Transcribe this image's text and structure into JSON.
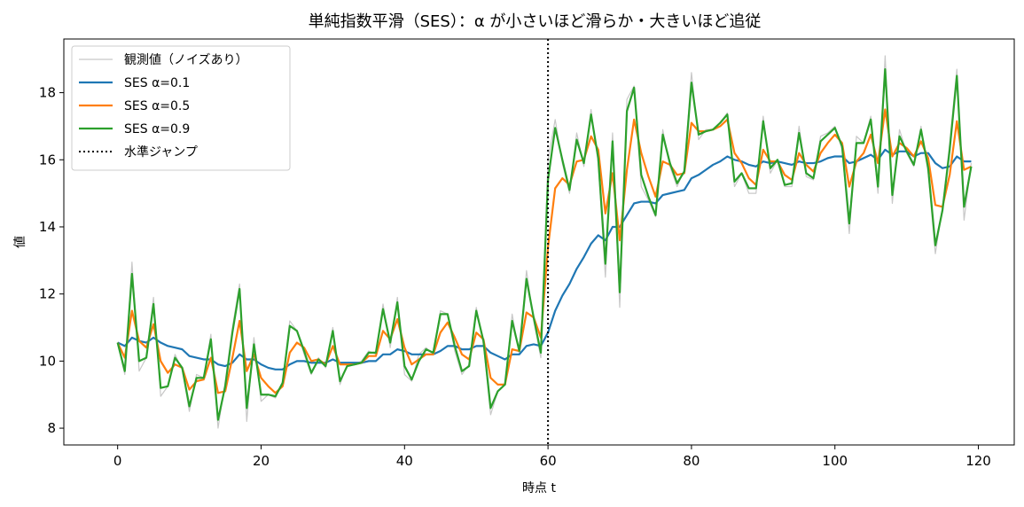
{
  "chart_data": {
    "type": "line",
    "title": "単純指数平滑（SES）：α が小さいほど滑らか・大きいほど追従",
    "xlabel": "時点 t",
    "ylabel": "値",
    "xlim": [
      -7.5,
      125
    ],
    "ylim": [
      7.5,
      19.6
    ],
    "xticks": [
      0,
      20,
      40,
      60,
      80,
      100,
      120
    ],
    "yticks": [
      8,
      10,
      12,
      14,
      16,
      18
    ],
    "grid": false,
    "legend": "top-left",
    "x": [
      0,
      1,
      2,
      3,
      4,
      5,
      6,
      7,
      8,
      9,
      10,
      11,
      12,
      13,
      14,
      15,
      16,
      17,
      18,
      19,
      20,
      21,
      22,
      23,
      24,
      25,
      26,
      27,
      28,
      29,
      30,
      31,
      32,
      33,
      34,
      35,
      36,
      37,
      38,
      39,
      40,
      41,
      42,
      43,
      44,
      45,
      46,
      47,
      48,
      49,
      50,
      51,
      52,
      53,
      54,
      55,
      56,
      57,
      58,
      59,
      60,
      61,
      62,
      63,
      64,
      65,
      66,
      67,
      68,
      69,
      70,
      71,
      72,
      73,
      74,
      75,
      76,
      77,
      78,
      79,
      80,
      81,
      82,
      83,
      84,
      85,
      86,
      87,
      88,
      89,
      90,
      91,
      92,
      93,
      94,
      95,
      96,
      97,
      98,
      99,
      100,
      101,
      102,
      103,
      104,
      105,
      106,
      107,
      108,
      109,
      110,
      111,
      112,
      113,
      114,
      115,
      116,
      117,
      118,
      119
    ],
    "series": [
      {
        "name": "観測値（ノイズあり）",
        "color": "#c8c8c8",
        "values": [
          10.55,
          9.6,
          12.95,
          9.7,
          10.1,
          11.9,
          8.95,
          9.25,
          10.2,
          9.75,
          8.5,
          9.6,
          9.5,
          10.8,
          8.0,
          9.4,
          11.0,
          12.3,
          8.2,
          10.7,
          8.8,
          9.0,
          8.9,
          9.4,
          11.2,
          10.9,
          10.2,
          9.6,
          10.1,
          9.8,
          11.0,
          9.3,
          9.9,
          9.9,
          10.0,
          10.3,
          10.2,
          11.7,
          10.4,
          11.9,
          9.6,
          9.4,
          10.2,
          10.4,
          10.2,
          11.5,
          11.4,
          10.3,
          9.6,
          9.9,
          11.6,
          10.5,
          8.4,
          9.1,
          9.3,
          11.4,
          10.2,
          12.7,
          11.2,
          10.1,
          16.0,
          17.2,
          15.9,
          15.0,
          16.8,
          15.8,
          17.5,
          15.9,
          12.5,
          16.8,
          11.6,
          17.8,
          18.2,
          15.2,
          14.8,
          14.3,
          16.9,
          15.8,
          15.2,
          15.7,
          18.6,
          16.6,
          16.9,
          16.9,
          17.1,
          17.4,
          15.2,
          15.6,
          15.0,
          15.0,
          17.3,
          15.6,
          16.0,
          15.2,
          15.2,
          17.0,
          15.5,
          15.4,
          16.7,
          16.8,
          17.0,
          16.3,
          13.8,
          16.7,
          16.5,
          17.3,
          15.0,
          19.1,
          14.7,
          16.9,
          16.2,
          15.8,
          17.0,
          15.6,
          13.2,
          14.6,
          16.5,
          18.7,
          14.2,
          15.9
        ]
      },
      {
        "name": "SES α=0.1",
        "color": "#1f77b4",
        "values": [
          10.55,
          10.45,
          10.7,
          10.6,
          10.55,
          10.7,
          10.55,
          10.45,
          10.4,
          10.35,
          10.15,
          10.1,
          10.05,
          10.05,
          9.9,
          9.85,
          9.95,
          10.2,
          10.05,
          10.05,
          9.9,
          9.8,
          9.75,
          9.75,
          9.9,
          10.0,
          10.0,
          9.95,
          9.95,
          9.95,
          10.05,
          9.95,
          9.95,
          9.95,
          9.95,
          10.0,
          10.0,
          10.2,
          10.2,
          10.35,
          10.3,
          10.2,
          10.2,
          10.2,
          10.2,
          10.3,
          10.45,
          10.45,
          10.35,
          10.35,
          10.45,
          10.45,
          10.25,
          10.15,
          10.05,
          10.2,
          10.2,
          10.45,
          10.5,
          10.45,
          10.85,
          11.5,
          11.95,
          12.3,
          12.75,
          13.1,
          13.5,
          13.75,
          13.6,
          14.0,
          14.0,
          14.35,
          14.7,
          14.75,
          14.75,
          14.7,
          14.95,
          15.0,
          15.05,
          15.1,
          15.45,
          15.55,
          15.7,
          15.85,
          15.95,
          16.1,
          16.0,
          15.95,
          15.85,
          15.8,
          15.95,
          15.9,
          15.95,
          15.9,
          15.85,
          15.95,
          15.9,
          15.9,
          15.95,
          16.05,
          16.1,
          16.1,
          15.9,
          15.95,
          16.05,
          16.15,
          16.0,
          16.3,
          16.15,
          16.25,
          16.25,
          16.1,
          16.2,
          16.2,
          15.9,
          15.75,
          15.8,
          16.1,
          15.95,
          15.95
        ]
      },
      {
        "name": "SES α=0.5",
        "color": "#ff7f0e",
        "values": [
          10.55,
          10.1,
          11.5,
          10.6,
          10.4,
          11.1,
          10.0,
          9.65,
          9.9,
          9.8,
          9.15,
          9.4,
          9.45,
          10.1,
          9.05,
          9.1,
          10.1,
          11.2,
          9.7,
          10.2,
          9.5,
          9.25,
          9.05,
          9.25,
          10.25,
          10.55,
          10.4,
          10.0,
          10.05,
          9.9,
          10.45,
          9.9,
          9.9,
          9.9,
          9.95,
          10.15,
          10.15,
          10.9,
          10.65,
          11.25,
          10.4,
          9.9,
          10.05,
          10.2,
          10.2,
          10.85,
          11.15,
          10.7,
          10.2,
          10.05,
          10.85,
          10.65,
          9.5,
          9.3,
          9.3,
          10.35,
          10.3,
          11.45,
          11.3,
          10.7,
          13.4,
          15.15,
          15.45,
          15.25,
          15.95,
          16.0,
          16.7,
          16.3,
          14.4,
          15.6,
          13.6,
          15.7,
          17.2,
          16.2,
          15.5,
          14.9,
          15.95,
          15.85,
          15.55,
          15.6,
          17.1,
          16.85,
          16.85,
          16.9,
          17.0,
          17.2,
          16.2,
          15.9,
          15.45,
          15.25,
          16.3,
          15.95,
          15.95,
          15.55,
          15.4,
          16.2,
          15.85,
          15.65,
          16.2,
          16.5,
          16.75,
          16.5,
          15.2,
          15.95,
          16.2,
          16.75,
          15.9,
          17.5,
          16.1,
          16.5,
          16.35,
          16.1,
          16.55,
          16.05,
          14.65,
          14.6,
          15.55,
          17.15,
          15.7,
          15.8
        ]
      },
      {
        "name": "SES α=0.9",
        "color": "#2ca02c",
        "values": [
          10.55,
          9.7,
          12.6,
          10.0,
          10.1,
          11.7,
          9.2,
          9.25,
          10.1,
          9.8,
          8.65,
          9.5,
          9.5,
          10.65,
          8.25,
          9.25,
          10.85,
          12.15,
          8.6,
          10.5,
          9.0,
          9.0,
          8.95,
          9.35,
          11.05,
          10.9,
          10.3,
          9.65,
          10.05,
          9.85,
          10.9,
          9.4,
          9.85,
          9.9,
          9.95,
          10.25,
          10.25,
          11.55,
          10.55,
          11.75,
          9.85,
          9.45,
          10.0,
          10.35,
          10.25,
          11.4,
          11.4,
          10.45,
          9.7,
          9.85,
          11.5,
          10.6,
          8.6,
          9.1,
          9.3,
          11.2,
          10.3,
          12.45,
          11.3,
          10.25,
          15.4,
          16.95,
          16.0,
          15.1,
          16.6,
          15.9,
          17.35,
          16.05,
          12.9,
          16.55,
          12.05,
          17.45,
          18.15,
          15.55,
          14.9,
          14.35,
          16.75,
          15.9,
          15.3,
          15.65,
          18.3,
          16.75,
          16.85,
          16.9,
          17.1,
          17.35,
          15.35,
          15.6,
          15.15,
          15.15,
          17.15,
          15.75,
          16.0,
          15.25,
          15.3,
          16.8,
          15.6,
          15.45,
          16.55,
          16.75,
          16.95,
          16.4,
          14.1,
          16.5,
          16.5,
          17.2,
          15.2,
          18.7,
          14.95,
          16.7,
          16.25,
          15.85,
          16.9,
          15.75,
          13.45,
          14.5,
          16.3,
          18.5,
          14.6,
          15.8
        ]
      },
      {
        "name": "水準ジャンプ",
        "color": "#000000",
        "vline_x": 60,
        "dashed": true
      }
    ]
  }
}
